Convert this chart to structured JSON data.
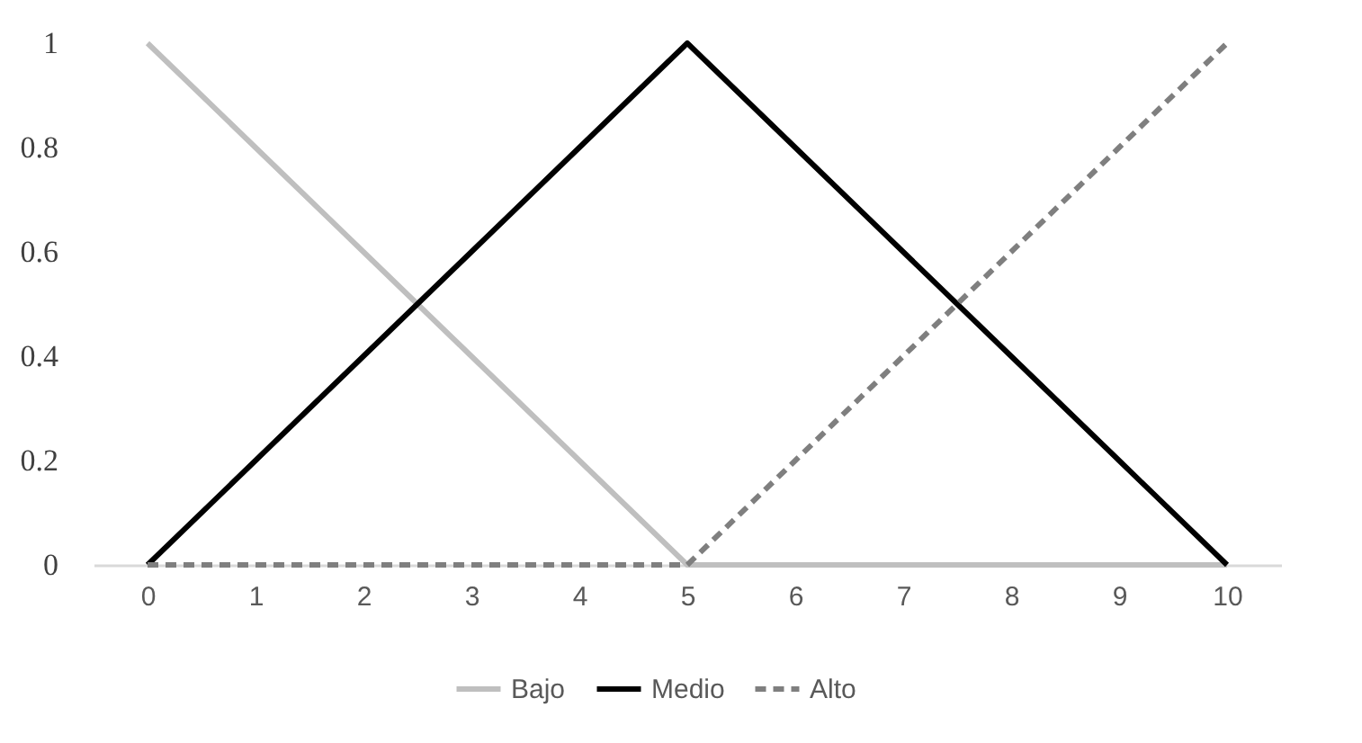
{
  "chart_data": {
    "type": "line",
    "categories": [
      "0",
      "1",
      "2",
      "3",
      "4",
      "5",
      "6",
      "7",
      "8",
      "9",
      "10"
    ],
    "series": [
      {
        "name": "Bajo",
        "color": "#bfbfbf",
        "line_style": "solid",
        "values": [
          1,
          0.8,
          0.6,
          0.4,
          0.2,
          0,
          0,
          0,
          0,
          0,
          0
        ]
      },
      {
        "name": "Medio",
        "color": "#000000",
        "line_style": "solid",
        "values": [
          0,
          0.2,
          0.4,
          0.6,
          0.8,
          1,
          0.8,
          0.6,
          0.4,
          0.2,
          0
        ]
      },
      {
        "name": "Alto",
        "color": "#7f7f7f",
        "line_style": "dashed",
        "values": [
          0,
          0,
          0,
          0,
          0,
          0,
          0.2,
          0.4,
          0.6,
          0.8,
          1
        ]
      }
    ],
    "ylim": [
      0,
      1
    ],
    "yticks": [
      0,
      0.2,
      0.4,
      0.6,
      0.8,
      1
    ],
    "grid": false,
    "legend": "bottom",
    "marker": "none"
  }
}
